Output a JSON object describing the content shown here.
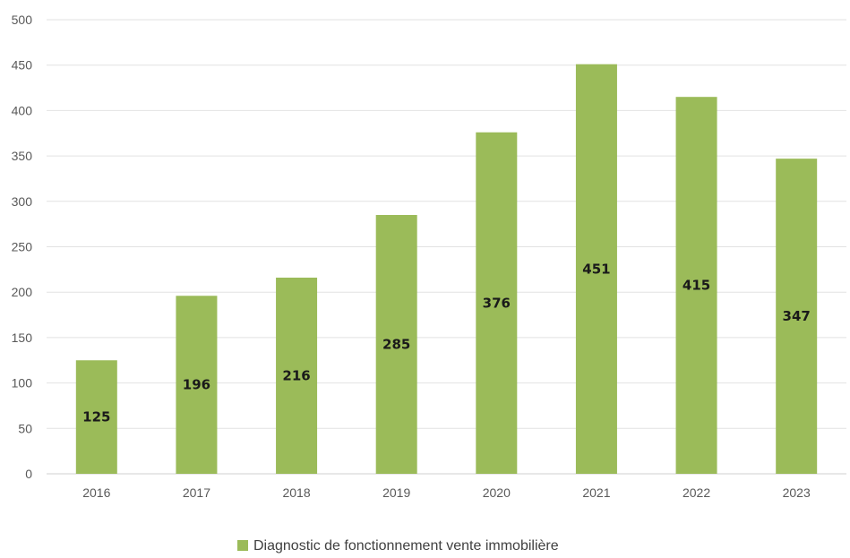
{
  "chart_data": {
    "type": "bar",
    "categories": [
      "2016",
      "2017",
      "2018",
      "2019",
      "2020",
      "2021",
      "2022",
      "2023"
    ],
    "series": [
      {
        "name": "Diagnostic de fonctionnement vente immobilière",
        "values": [
          125,
          196,
          216,
          285,
          376,
          451,
          415,
          347
        ],
        "color": "#9bbb59"
      }
    ],
    "ylim": [
      0,
      500
    ],
    "yticks": [
      0,
      50,
      100,
      150,
      200,
      250,
      300,
      350,
      400,
      450,
      500
    ],
    "grid": true,
    "legend_position": "bottom"
  }
}
